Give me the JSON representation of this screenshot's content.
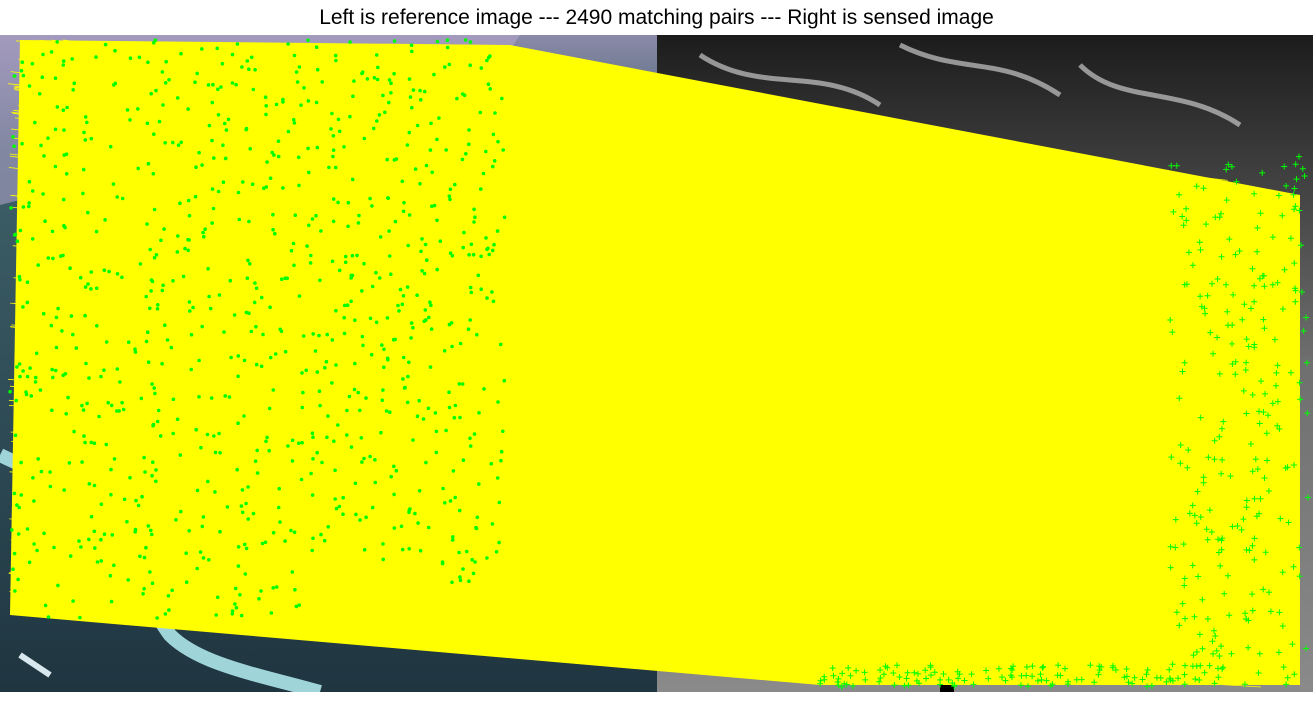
{
  "figure": {
    "title": "Left is reference image --- 2490 matching pairs --- Right is sensed image",
    "match_count": 2490
  },
  "images": {
    "left": {
      "role": "reference",
      "kind": "optical satellite image with river"
    },
    "right": {
      "role": "sensed",
      "kind": "grayscale SAR satellite image"
    }
  },
  "colors": {
    "match_line": "#ffff00",
    "left_keypoint": "#00ff00",
    "right_keypoint": "#00ff00",
    "river": "#9fd4d8",
    "left_base": "#2d4a52",
    "right_base": "#7a7a7a"
  }
}
